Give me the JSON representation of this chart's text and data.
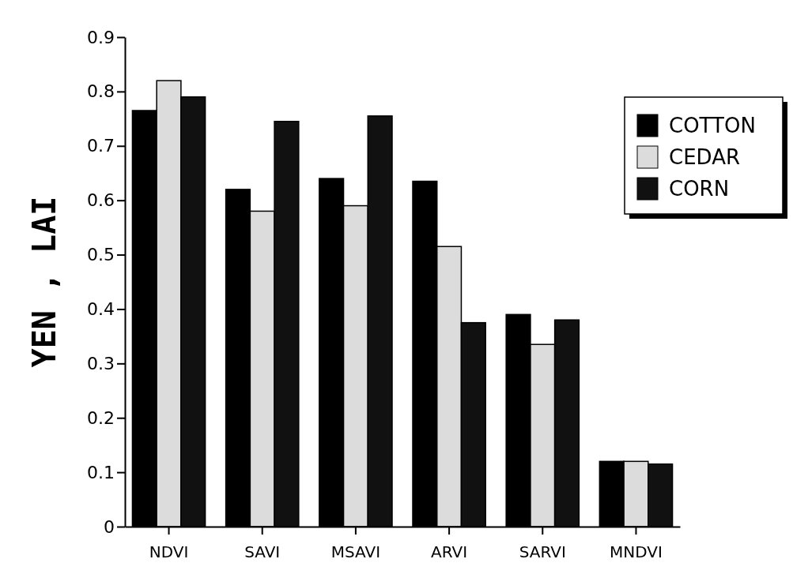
{
  "chart_data": {
    "type": "bar",
    "ylabel": "YEN , LAI",
    "categories": [
      "NDVI",
      "SAVI",
      "MSAVI",
      "ARVI",
      "SARVI",
      "MNDVI"
    ],
    "series": [
      {
        "name": "COTTON",
        "color": "#000000",
        "values": [
          0.765,
          0.62,
          0.64,
          0.635,
          0.39,
          0.12
        ]
      },
      {
        "name": "CEDAR",
        "color": "#dcdcdc",
        "values": [
          0.82,
          0.58,
          0.59,
          0.515,
          0.335,
          0.12
        ]
      },
      {
        "name": "CORN",
        "color": "#111111",
        "values": [
          0.79,
          0.745,
          0.755,
          0.375,
          0.38,
          0.115
        ]
      }
    ],
    "ylim": [
      0,
      0.9
    ],
    "yticks": [
      0,
      0.1,
      0.2,
      0.3,
      0.4,
      0.5,
      0.6,
      0.7,
      0.8,
      0.9
    ],
    "grid": false,
    "legend": "top right"
  }
}
